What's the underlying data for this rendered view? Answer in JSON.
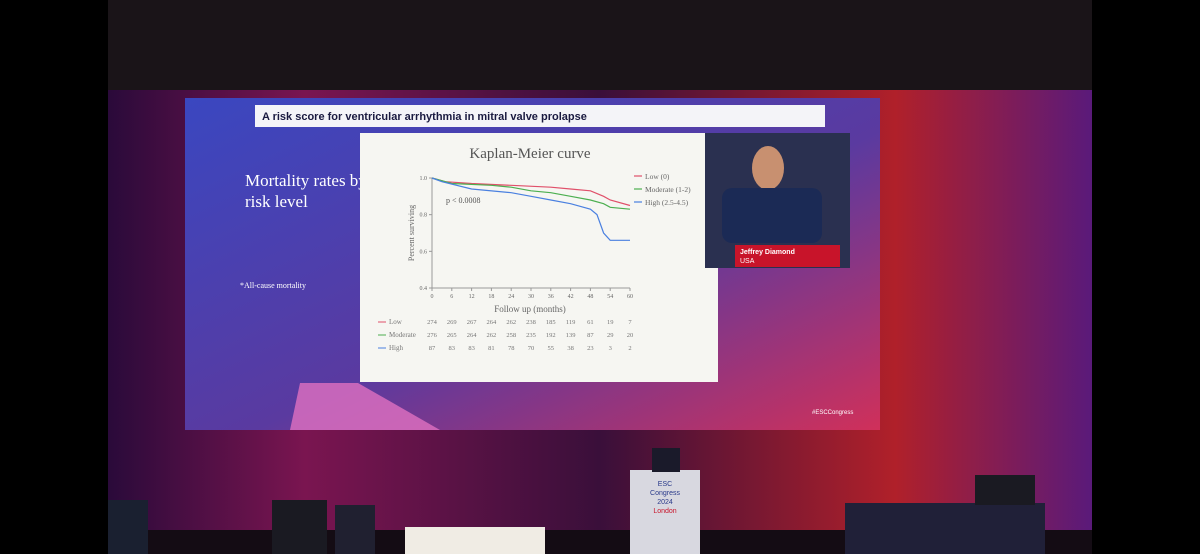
{
  "slide": {
    "banner": "A risk score for ventricular arrhythmia in mitral valve prolapse",
    "heading": "Mortality rates by risk level",
    "footnote": "*All-cause mortality",
    "hashtag": "#ESCCongress",
    "speaker_name": "Jeffrey Diamond",
    "speaker_country": "USA"
  },
  "chart_data": {
    "type": "line",
    "title": "Kaplan-Meier curve",
    "annotation": "p < 0.0008",
    "x_label": "Follow up (months)",
    "y_label": "Percent surviving",
    "xlim": [
      0,
      60
    ],
    "xticks": [
      0,
      6,
      12,
      18,
      24,
      30,
      36,
      42,
      48,
      54,
      60
    ],
    "ylim": [
      0.4,
      1.0
    ],
    "yticks": [
      {
        "value": 0.4,
        "label": "0.4"
      },
      {
        "value": 0.6,
        "label": "0.6"
      },
      {
        "value": 0.8,
        "label": "0.8"
      },
      {
        "value": 1.0,
        "label": "1.0"
      }
    ],
    "series": [
      {
        "name": "Low (0)",
        "risk_label": "Low",
        "color": "#e0506a",
        "x": [
          0,
          4,
          12,
          24,
          36,
          42,
          48,
          52,
          54,
          60
        ],
        "values": [
          1.0,
          0.98,
          0.97,
          0.96,
          0.95,
          0.94,
          0.93,
          0.9,
          0.88,
          0.85
        ],
        "at_risk": [
          274,
          269,
          267,
          264,
          262,
          238,
          185,
          119,
          61,
          19,
          7
        ]
      },
      {
        "name": "Moderate (1-2)",
        "risk_label": "Moderate",
        "color": "#4caf50",
        "x": [
          0,
          6,
          18,
          24,
          30,
          36,
          42,
          48,
          52,
          54,
          60
        ],
        "values": [
          1.0,
          0.97,
          0.96,
          0.95,
          0.93,
          0.92,
          0.9,
          0.88,
          0.86,
          0.84,
          0.83
        ],
        "at_risk": [
          276,
          265,
          264,
          262,
          258,
          235,
          192,
          139,
          87,
          29,
          20
        ]
      },
      {
        "name": "High (2.5-4.5)",
        "risk_label": "High",
        "color": "#4a80e0",
        "x": [
          0,
          3,
          12,
          24,
          30,
          36,
          42,
          48,
          50,
          52,
          54,
          60
        ],
        "values": [
          1.0,
          0.98,
          0.94,
          0.92,
          0.9,
          0.88,
          0.86,
          0.83,
          0.8,
          0.7,
          0.66,
          0.66
        ],
        "at_risk": [
          87,
          83,
          83,
          81,
          78,
          70,
          55,
          38,
          23,
          3,
          2
        ]
      }
    ]
  },
  "venue": {
    "podium_line1": "ESC",
    "podium_line2": "Congress",
    "podium_line3": "2024",
    "podium_line4": "London"
  }
}
